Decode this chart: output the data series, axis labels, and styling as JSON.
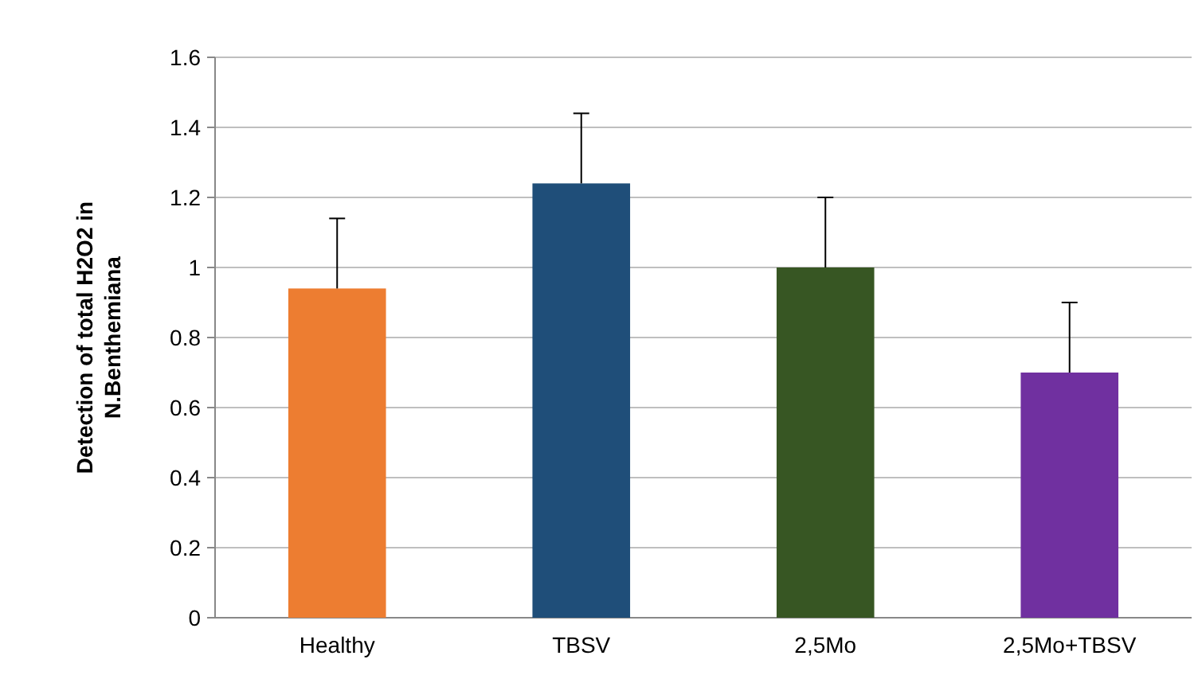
{
  "chart_data": {
    "type": "bar",
    "ylabel": "Detection of total H2O2 in N.Benthemiana",
    "categories": [
      "Healthy",
      "TBSV",
      "2,5Mo",
      "2,5Mo+TBSV"
    ],
    "values": [
      0.94,
      1.24,
      1.0,
      0.7
    ],
    "colors": [
      "#ed7d31",
      "#1f4e79",
      "#375623",
      "#7030a0"
    ],
    "errors": [
      [
        0.94,
        1.14
      ],
      [
        1.24,
        1.44
      ],
      [
        1.0,
        1.2
      ],
      [
        0.7,
        0.9
      ]
    ],
    "ylim": [
      0,
      1.6
    ],
    "yticks": [
      0,
      0.2,
      0.4,
      0.6,
      0.8,
      1,
      1.2,
      1.4,
      1.6
    ],
    "grid": "y"
  }
}
